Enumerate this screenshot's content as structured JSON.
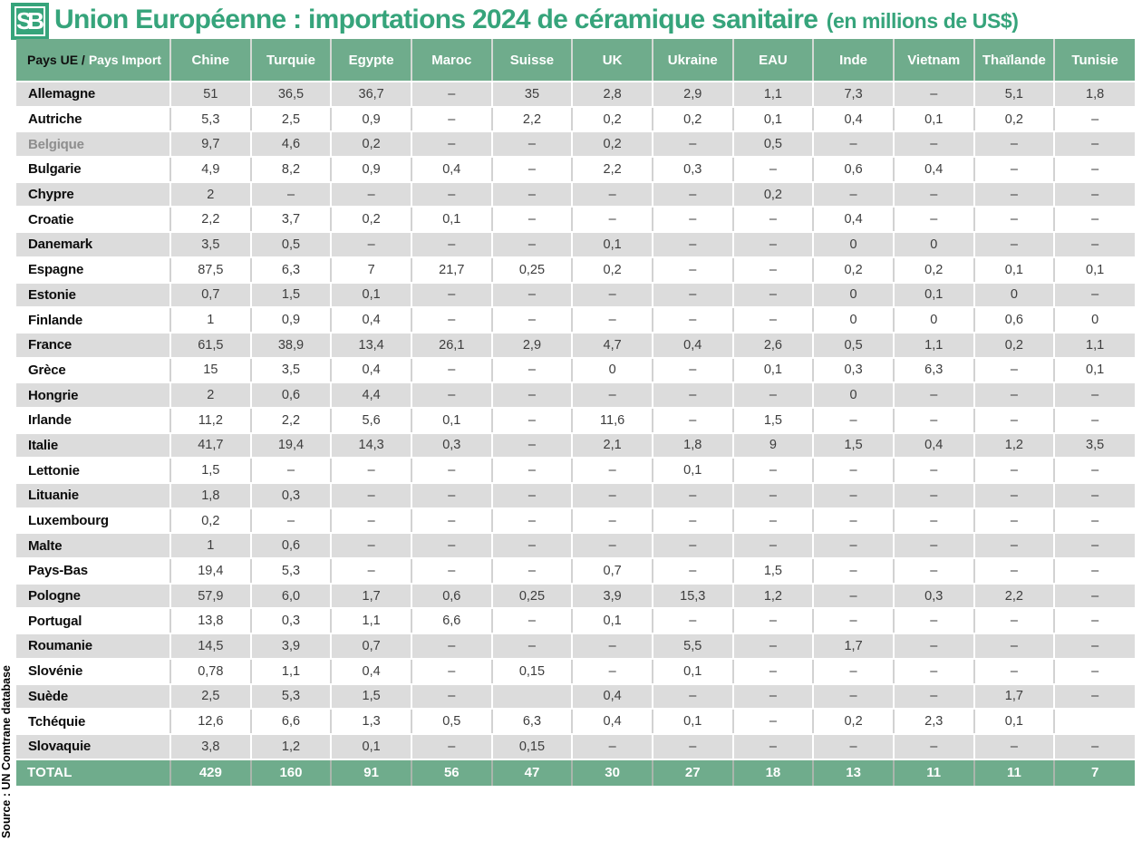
{
  "logo": {
    "text": "SB"
  },
  "colors": {
    "title_green": "#36a47b",
    "header_green": "#6fac8c",
    "total_green": "#6fac8c",
    "row_gray": "#dcdcdc",
    "row_white": "#ffffff",
    "label_black": "#0d0d0d",
    "label_muted": "#8e8e8e",
    "value_text": "#3d3d3d",
    "divider_light": "#d4d9d4",
    "divider_total": "#a9b6ac"
  },
  "chart_data": {
    "type": "table",
    "title": "Union Européenne : importations 2024 de céramique sanitaire",
    "unit_note": "(en millions de US$)",
    "source": "Source : UN Comtrane database",
    "empty_marker": "–",
    "corner_header": {
      "left": "Pays UE /",
      "right": "Pays Import"
    },
    "columns": [
      "Chine",
      "Turquie",
      "Egypte",
      "Maroc",
      "Suisse",
      "UK",
      "Ukraine",
      "EAU",
      "Inde",
      "Vietnam",
      "Thaïlande",
      "Tunisie"
    ],
    "rows": [
      {
        "label": "Allemagne",
        "muted": false,
        "values": [
          "51",
          "36,5",
          "36,7",
          "–",
          "35",
          "2,8",
          "2,9",
          "1,1",
          "7,3",
          "–",
          "5,1",
          "1,8"
        ]
      },
      {
        "label": "Autriche",
        "muted": false,
        "values": [
          "5,3",
          "2,5",
          "0,9",
          "–",
          "2,2",
          "0,2",
          "0,2",
          "0,1",
          "0,4",
          "0,1",
          "0,2",
          "–"
        ]
      },
      {
        "label": "Belgique",
        "muted": true,
        "values": [
          "9,7",
          "4,6",
          "0,2",
          "–",
          "–",
          "0,2",
          "–",
          "0,5",
          "–",
          "–",
          "–",
          "–"
        ]
      },
      {
        "label": "Bulgarie",
        "muted": false,
        "values": [
          "4,9",
          "8,2",
          "0,9",
          "0,4",
          "–",
          "2,2",
          "0,3",
          "–",
          "0,6",
          "0,4",
          "–",
          "–"
        ]
      },
      {
        "label": "Chypre",
        "muted": false,
        "values": [
          "2",
          "–",
          "–",
          "–",
          "–",
          "–",
          "–",
          "0,2",
          "–",
          "–",
          "–",
          "–"
        ]
      },
      {
        "label": "Croatie",
        "muted": false,
        "values": [
          "2,2",
          "3,7",
          "0,2",
          "0,1",
          "–",
          "–",
          "–",
          "–",
          "0,4",
          "–",
          "–",
          "–"
        ]
      },
      {
        "label": "Danemark",
        "muted": false,
        "values": [
          "3,5",
          "0,5",
          "–",
          "–",
          "–",
          "0,1",
          "–",
          "–",
          "0",
          "0",
          "–",
          "–"
        ]
      },
      {
        "label": "Espagne",
        "muted": false,
        "values": [
          "87,5",
          "6,3",
          "7",
          "21,7",
          "0,25",
          "0,2",
          "–",
          "–",
          "0,2",
          "0,2",
          "0,1",
          "0,1"
        ]
      },
      {
        "label": "Estonie",
        "muted": false,
        "values": [
          "0,7",
          "1,5",
          "0,1",
          "–",
          "–",
          "–",
          "–",
          "–",
          "0",
          "0,1",
          "0",
          "–"
        ]
      },
      {
        "label": "Finlande",
        "muted": false,
        "values": [
          "1",
          "0,9",
          "0,4",
          "–",
          "–",
          "–",
          "–",
          "–",
          "0",
          "0",
          "0,6",
          "0"
        ]
      },
      {
        "label": "France",
        "muted": false,
        "values": [
          "61,5",
          "38,9",
          "13,4",
          "26,1",
          "2,9",
          "4,7",
          "0,4",
          "2,6",
          "0,5",
          "1,1",
          "0,2",
          "1,1"
        ]
      },
      {
        "label": "Grèce",
        "muted": false,
        "values": [
          "15",
          "3,5",
          "0,4",
          "–",
          "–",
          "0",
          "–",
          "0,1",
          "0,3",
          "6,3",
          "–",
          "0,1"
        ]
      },
      {
        "label": "Hongrie",
        "muted": false,
        "values": [
          "2",
          "0,6",
          "4,4",
          "–",
          "–",
          "–",
          "–",
          "–",
          "0",
          "–",
          "–",
          "–"
        ]
      },
      {
        "label": "Irlande",
        "muted": false,
        "values": [
          "11,2",
          "2,2",
          "5,6",
          "0,1",
          "–",
          "11,6",
          "–",
          "1,5",
          "–",
          "–",
          "–",
          "–"
        ]
      },
      {
        "label": "Italie",
        "muted": false,
        "values": [
          "41,7",
          "19,4",
          "14,3",
          "0,3",
          "–",
          "2,1",
          "1,8",
          "9",
          "1,5",
          "0,4",
          "1,2",
          "3,5"
        ]
      },
      {
        "label": "Lettonie",
        "muted": false,
        "values": [
          "1,5",
          "–",
          "–",
          "–",
          "–",
          "–",
          "0,1",
          "–",
          "–",
          "–",
          "–",
          "–"
        ]
      },
      {
        "label": "Lituanie",
        "muted": false,
        "values": [
          "1,8",
          "0,3",
          "–",
          "–",
          "–",
          "–",
          "–",
          "–",
          "–",
          "–",
          "–",
          "–"
        ]
      },
      {
        "label": "Luxembourg",
        "muted": false,
        "values": [
          "0,2",
          "–",
          "–",
          "–",
          "–",
          "–",
          "–",
          "–",
          "–",
          "–",
          "–",
          "–"
        ]
      },
      {
        "label": "Malte",
        "muted": false,
        "values": [
          "1",
          "0,6",
          "–",
          "–",
          "–",
          "–",
          "–",
          "–",
          "–",
          "–",
          "–",
          "–"
        ]
      },
      {
        "label": "Pays-Bas",
        "muted": false,
        "values": [
          "19,4",
          "5,3",
          "–",
          "–",
          "–",
          "0,7",
          "–",
          "1,5",
          "–",
          "–",
          "–",
          "–"
        ]
      },
      {
        "label": "Pologne",
        "muted": false,
        "values": [
          "57,9",
          "6,0",
          "1,7",
          "0,6",
          "0,25",
          "3,9",
          "15,3",
          "1,2",
          "–",
          "0,3",
          "2,2",
          "–"
        ]
      },
      {
        "label": "Portugal",
        "muted": false,
        "values": [
          "13,8",
          "0,3",
          "1,1",
          "6,6",
          "–",
          "0,1",
          "–",
          "–",
          "–",
          "–",
          "–",
          "–"
        ]
      },
      {
        "label": "Roumanie",
        "muted": false,
        "values": [
          "14,5",
          "3,9",
          "0,7",
          "–",
          "–",
          "–",
          "5,5",
          "–",
          "1,7",
          "–",
          "–",
          "–"
        ]
      },
      {
        "label": "Slovénie",
        "muted": false,
        "values": [
          "0,78",
          "1,1",
          "0,4",
          "–",
          "0,15",
          "–",
          "0,1",
          "–",
          "–",
          "–",
          "–",
          "–"
        ]
      },
      {
        "label": "Suède",
        "muted": false,
        "values": [
          "2,5",
          "5,3",
          "1,5",
          "–",
          "",
          "0,4",
          "–",
          "–",
          "–",
          "–",
          "1,7",
          "–"
        ]
      },
      {
        "label": "Tchéquie",
        "muted": false,
        "values": [
          "12,6",
          "6,6",
          "1,3",
          "0,5",
          "6,3",
          "0,4",
          "0,1",
          "–",
          "0,2",
          "2,3",
          "0,1",
          ""
        ]
      },
      {
        "label": "Slovaquie",
        "muted": false,
        "values": [
          "3,8",
          "1,2",
          "0,1",
          "–",
          "0,15",
          "–",
          "–",
          "–",
          "–",
          "–",
          "–",
          "–"
        ]
      }
    ],
    "total": {
      "label": "TOTAL",
      "values": [
        "429",
        "160",
        "91",
        "56",
        "47",
        "30",
        "27",
        "18",
        "13",
        "11",
        "11",
        "7"
      ]
    }
  }
}
